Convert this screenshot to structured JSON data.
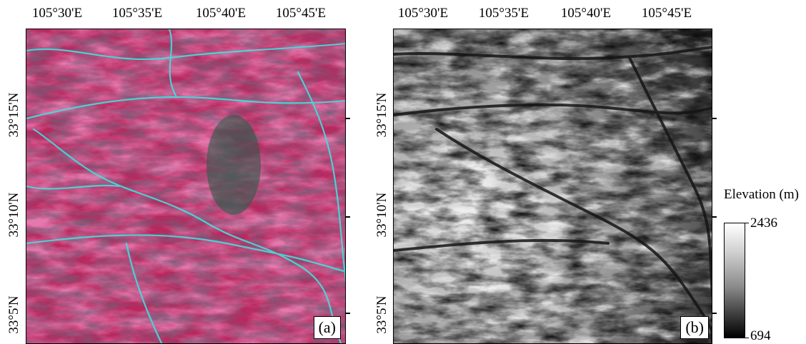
{
  "panel_a": {
    "lon_labels": [
      "105°30'E",
      "105°35'E",
      "105°40'E",
      "105°45'E"
    ],
    "lat_labels": [
      "33°15'N",
      "33°10'N",
      "33°5'N"
    ],
    "label": "(a)",
    "colors": {
      "vegetation": "#c8306a",
      "water": "#3fe0e0",
      "shadow": "#3a1f34"
    }
  },
  "panel_b": {
    "lon_labels": [
      "105°30'E",
      "105°35'E",
      "105°40'E",
      "105°45'E"
    ],
    "lat_labels": [
      "33°15'N",
      "33°10'N",
      "33°5'N"
    ],
    "label": "(b)"
  },
  "legend": {
    "title": "Elevation (m)",
    "max": "2436",
    "min": "694",
    "colors": {
      "high": "#ffffff",
      "low": "#000000"
    }
  }
}
